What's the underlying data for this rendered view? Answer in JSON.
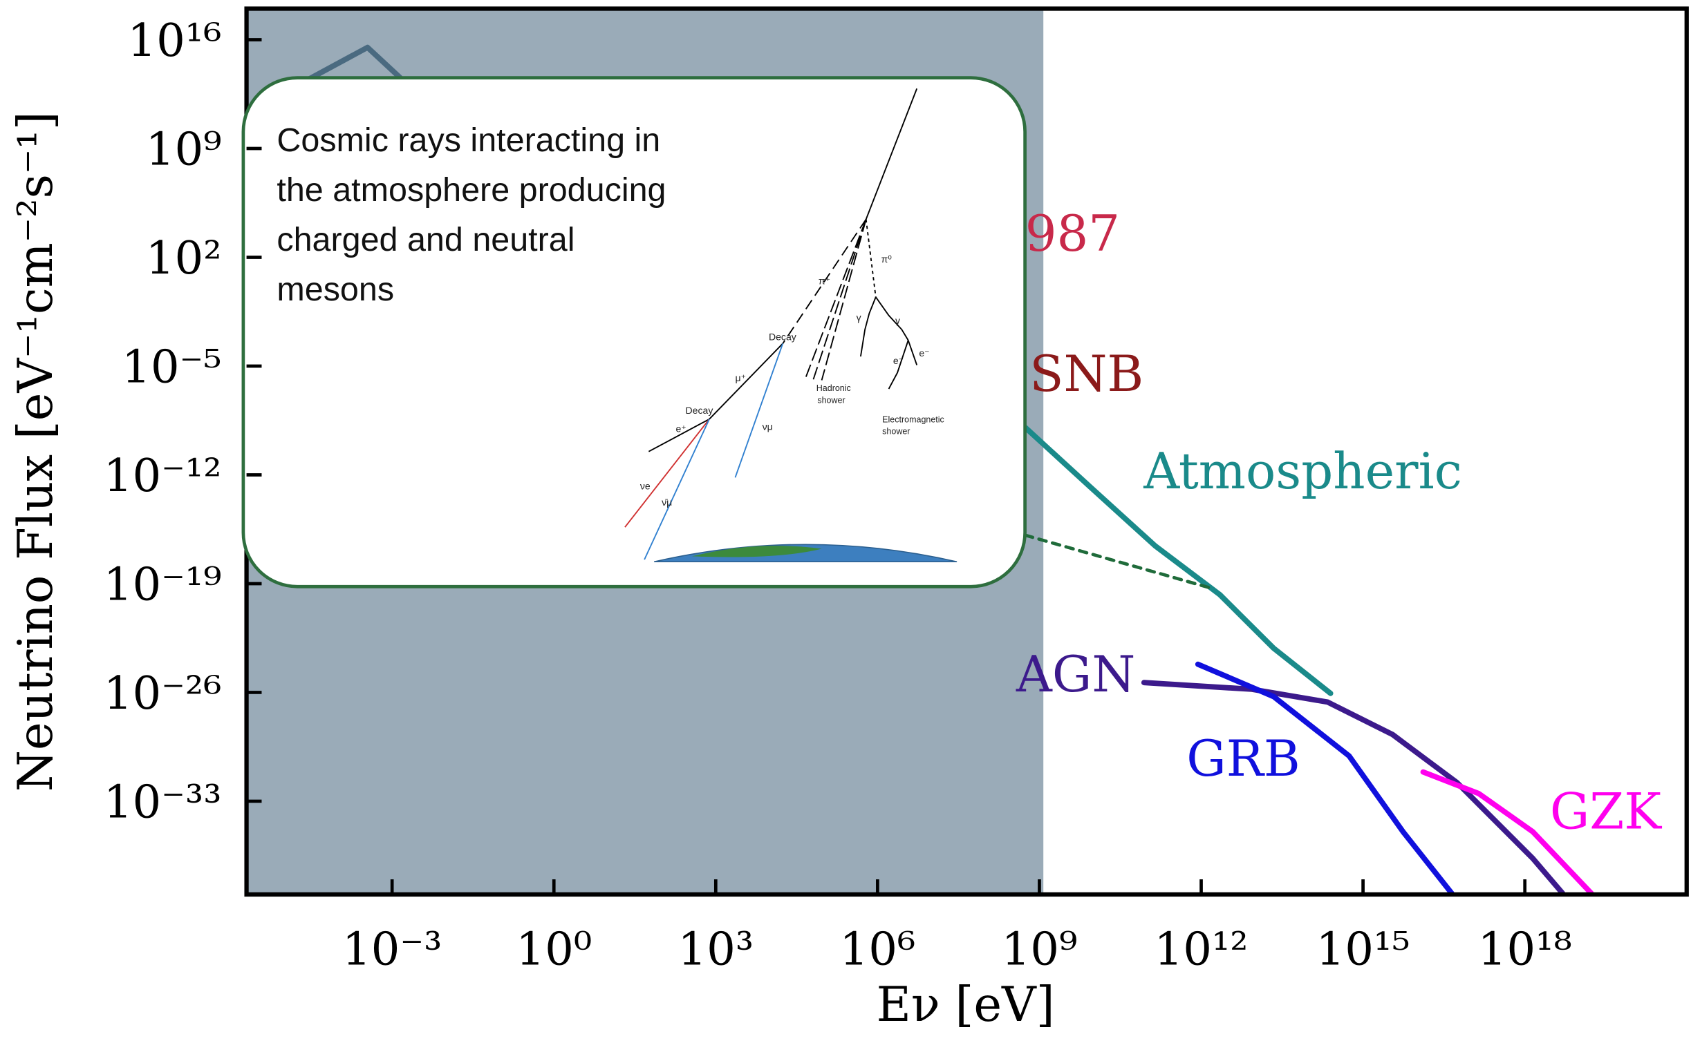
{
  "chart_data": {
    "type": "line",
    "x_label": "Eν [eV]",
    "y_label": "Neutrino Flux [eV⁻¹cm⁻²s⁻¹]",
    "xscale": "log",
    "yscale": "log",
    "xlim": [
      2e-06,
      1e+21
    ],
    "ylim": [
      1e-39,
      1e+18
    ],
    "xticks": [
      {
        "value": 0.001,
        "label": "10⁻³"
      },
      {
        "value": 1,
        "label": "10⁰"
      },
      {
        "value": 1000,
        "label": "10³"
      },
      {
        "value": 1000000,
        "label": "10⁶"
      },
      {
        "value": 1000000000.0,
        "label": "10⁹"
      },
      {
        "value": 1000000000000.0,
        "label": "10¹²"
      },
      {
        "value": 1000000000000000.0,
        "label": "10¹⁵"
      },
      {
        "value": 1e+18,
        "label": "10¹⁸"
      }
    ],
    "yticks": [
      {
        "value": 1e+16,
        "label": "10¹⁶"
      },
      {
        "value": 1000000000.0,
        "label": "10⁹"
      },
      {
        "value": 100,
        "label": "10²"
      },
      {
        "value": 1e-05,
        "label": "10⁻⁵"
      },
      {
        "value": 1e-12,
        "label": "10⁻¹²"
      },
      {
        "value": 1e-19,
        "label": "10⁻¹⁹"
      },
      {
        "value": 1e-26,
        "label": "10⁻²⁶"
      },
      {
        "value": 1e-33,
        "label": "10⁻³³"
      }
    ],
    "series": [
      {
        "name": "Atmospheric",
        "color": "#1a8a8a",
        "x": [
          550000000.0,
          8700000000.0,
          140000000000.0,
          2200000000000.0,
          22000000000000.0,
          250000000000000.0
        ],
        "values": [
          1.1e-09,
          1.7e-13,
          2.7e-17,
          2e-20,
          7e-24,
          8.7e-27
        ]
      },
      {
        "color": "#1f6b3a",
        "dashed": true,
        "x": [
          550000000.0,
          1700000000000.0
        ],
        "values": [
          1.3e-16,
          4.6e-20
        ]
      },
      {
        "name": "AGN",
        "color": "#3c1a8c",
        "x": [
          87000000000.0,
          8700000000000.0,
          220000000000000.0,
          3500000000000000.0,
          5.5e+16,
          1.4e+18,
          5e+18
        ],
        "values": [
          4.3e-26,
          1.6e-26,
          2.4e-27,
          2e-29,
          1.6e-32,
          2.1e-37,
          1.2e-39
        ]
      },
      {
        "name": "GRB",
        "color": "#1010dd",
        "x": [
          870000000000.0,
          22000000000000.0,
          550000000000000.0,
          5500000000000000.0,
          4.4e+16
        ],
        "values": [
          6.5e-25,
          5.4e-27,
          8.3e-31,
          1.1e-35,
          1.2e-39
        ]
      },
      {
        "name": "GZK",
        "color": "#ff00ee",
        "x": [
          1.3e+16,
          1.4e+17,
          1.4e+18,
          1.7e+19
        ],
        "values": [
          7.6e-32,
          3.1e-33,
          1.1e-35,
          1.2e-39
        ]
      },
      {
        "color": "#4a6a80",
        "x": [
          1.4e-05,
          0.00035,
          0.0014
        ],
        "values": [
          7600000000000.0,
          3200000000000000.0,
          37000000000000.0
        ]
      }
    ],
    "annotations": [
      {
        "text": "987",
        "color": "#c8294a"
      },
      {
        "text": "SNB",
        "color": "#8b1a1a"
      }
    ]
  },
  "callout": {
    "lines": [
      "Cosmic rays interacting in",
      "the atmosphere producing",
      "charged and neutral",
      "mesons"
    ],
    "figure_labels": [
      "Decay",
      "Decay",
      "π⁺",
      "π⁰",
      "μ⁺",
      "e⁺",
      "νμ",
      "νe",
      "ν̄μ",
      "γ",
      "γ",
      "e⁻",
      "e⁻",
      "Hadronic",
      "shower",
      "Electromagnetic",
      "shower"
    ]
  }
}
